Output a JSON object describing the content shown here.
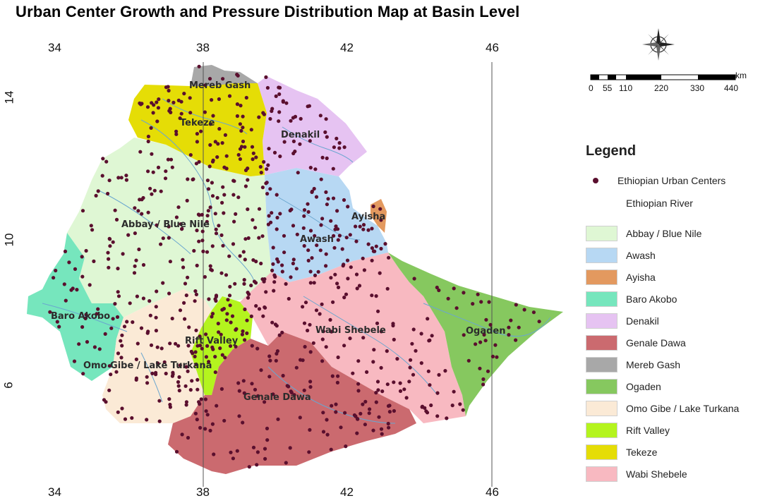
{
  "title": "Urban Center Growth and Pressure Distribution Map at Basin Level",
  "axes": {
    "longitude_ticks": [
      "34",
      "38",
      "42",
      "46"
    ],
    "latitude_ticks": [
      "14",
      "10",
      "6"
    ]
  },
  "scale_bar": {
    "unit": "km",
    "labels": [
      "0",
      "55",
      "110",
      "220",
      "330",
      "440"
    ]
  },
  "legend": {
    "title": "Legend",
    "point_layer": "Ethiopian Urban Centers",
    "line_layer": "Ethiopian River",
    "basins": [
      {
        "name": "Abbay / Blue Nile",
        "color": "#dff7d4"
      },
      {
        "name": "Awash",
        "color": "#b7d8f3"
      },
      {
        "name": "Ayisha",
        "color": "#e3995f"
      },
      {
        "name": "Baro Akobo",
        "color": "#76e6bd"
      },
      {
        "name": "Denakil",
        "color": "#e6c3f2"
      },
      {
        "name": "Genale Dawa",
        "color": "#cb6a6f"
      },
      {
        "name": "Mereb Gash",
        "color": "#a8a8a8"
      },
      {
        "name": "Ogaden",
        "color": "#86c85f"
      },
      {
        "name": "Omo Gibe / Lake Turkana",
        "color": "#fbead6"
      },
      {
        "name": "Rift Valley",
        "color": "#b4f41e"
      },
      {
        "name": "Tekeze",
        "color": "#e5dd06"
      },
      {
        "name": "Wabi Shebele",
        "color": "#f8b9c1"
      }
    ]
  },
  "map_labels": {
    "mereb_gash": "Mereb Gash",
    "tekeze": "Tekeze",
    "denakil": "Denakil",
    "abbay": "Abbay / Blue Nile",
    "awash": "Awash",
    "ayisha": "Ayisha",
    "baro_akobo": "Baro Akobo",
    "wabi_shebele": "Wabi Shebele",
    "ogaden": "Ogaden",
    "rift_valley": "Rift Valley",
    "omo_gibe": "Omo Gibe / Lake Turkana",
    "genale_dawa": "Genale Dawa"
  },
  "colors": {
    "urban_center": "#5a0f2e",
    "river": "#6aa6cf",
    "graticule": "#555555"
  }
}
